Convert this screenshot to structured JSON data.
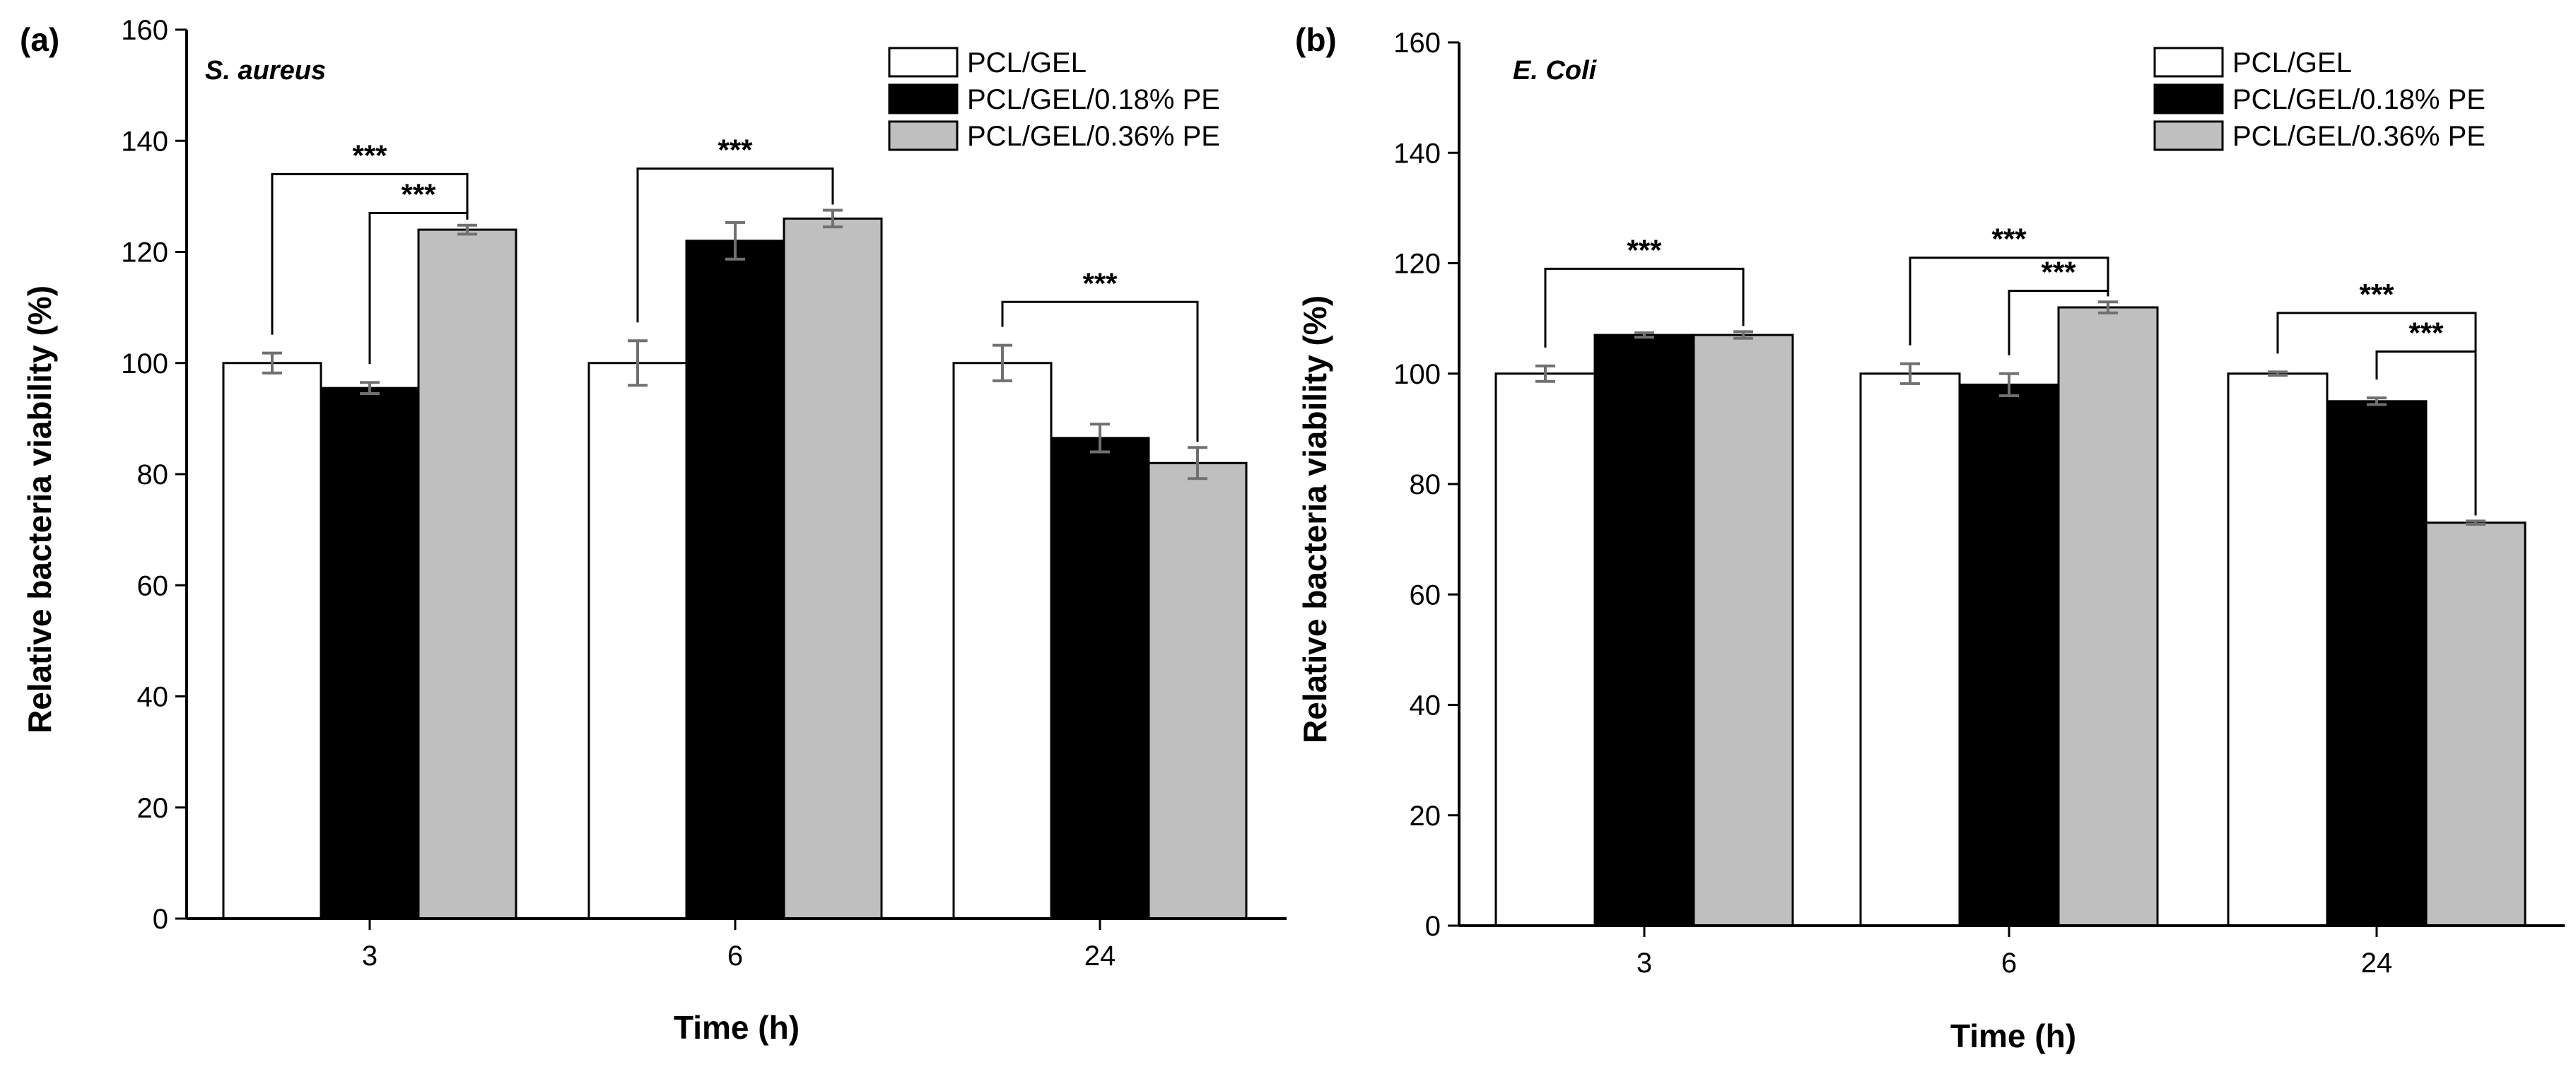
{
  "chart_data": [
    {
      "type": "bar",
      "panel_label": "(a)",
      "title": "S. aureus",
      "xlabel": "Time (h)",
      "ylabel": "Relative bacteria viability (%)",
      "ylim": [
        0,
        160
      ],
      "yticks": [
        0,
        20,
        40,
        60,
        80,
        100,
        120,
        140,
        160
      ],
      "categories": [
        "3",
        "6",
        "24"
      ],
      "series": [
        {
          "name": "PCL/GEL",
          "color": "#ffffff",
          "values": [
            100,
            100,
            100
          ],
          "errors": [
            1.8,
            4.0,
            3.2
          ]
        },
        {
          "name": "PCL/GEL/0.18% PE",
          "color": "#000000",
          "values": [
            95.5,
            122,
            86.5
          ],
          "errors": [
            1.0,
            3.3,
            2.5
          ]
        },
        {
          "name": "PCL/GEL/0.36% PE",
          "color": "#bfbfbf",
          "values": [
            124,
            126,
            82
          ],
          "errors": [
            0.8,
            1.5,
            2.8
          ]
        }
      ],
      "significance": [
        {
          "label": "***",
          "category": 0,
          "from_series": 0,
          "to_series": 2,
          "y": 134
        },
        {
          "label": "***",
          "category": 0,
          "from_series": 1,
          "to_series": 2,
          "y": 127
        },
        {
          "label": "***",
          "category": 1,
          "from_series": 0,
          "to_series": 2,
          "y": 135
        },
        {
          "label": "***",
          "category": 2,
          "from_series": 0,
          "to_series": 2,
          "y": 111
        }
      ],
      "legend_position": "top-right"
    },
    {
      "type": "bar",
      "panel_label": "(b)",
      "title": "E. Coli",
      "xlabel": "Time (h)",
      "ylabel": "Relative bacteria viability (%)",
      "ylim": [
        0,
        160
      ],
      "yticks": [
        0,
        20,
        40,
        60,
        80,
        100,
        120,
        140,
        160
      ],
      "categories": [
        "3",
        "6",
        "24"
      ],
      "series": [
        {
          "name": "PCL/GEL",
          "color": "#ffffff",
          "values": [
            100,
            100,
            100
          ],
          "errors": [
            1.4,
            1.8,
            0.3
          ]
        },
        {
          "name": "PCL/GEL/0.18% PE",
          "color": "#000000",
          "values": [
            107,
            98,
            95
          ],
          "errors": [
            0.4,
            2.0,
            0.6
          ]
        },
        {
          "name": "PCL/GEL/0.36% PE",
          "color": "#bfbfbf",
          "values": [
            107,
            112,
            73
          ],
          "errors": [
            0.6,
            1.0,
            0.3
          ]
        }
      ],
      "significance": [
        {
          "label": "***",
          "category": 0,
          "from_series": 0,
          "to_series": 2,
          "y": 119
        },
        {
          "label": "***",
          "category": 1,
          "from_series": 0,
          "to_series": 2,
          "y": 121
        },
        {
          "label": "***",
          "category": 1,
          "from_series": 1,
          "to_series": 2,
          "y": 115
        },
        {
          "label": "***",
          "category": 2,
          "from_series": 0,
          "to_series": 2,
          "y": 111
        },
        {
          "label": "***",
          "category": 2,
          "from_series": 1,
          "to_series": 2,
          "y": 104
        }
      ],
      "legend_position": "top-right"
    }
  ]
}
